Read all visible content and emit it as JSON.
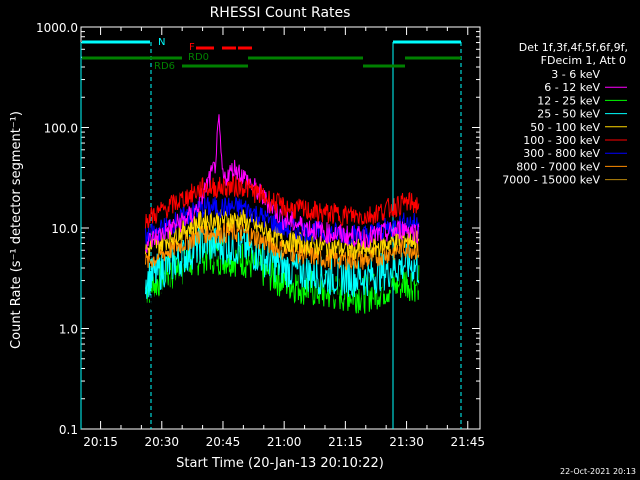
{
  "chart_data": {
    "type": "line",
    "title": "RHESSI Count Rates",
    "xlabel": "Start Time (20-Jan-13 20:10:22)",
    "ylabel": "Count Rate (s⁻¹ detector segment⁻¹)",
    "yscale": "log",
    "ylim": [
      0.1,
      1000
    ],
    "xlim_minutes": [
      20.17,
      21.8
    ],
    "yticks": [
      "0.1",
      "1.0",
      "10.0",
      "100.0",
      "1000.0"
    ],
    "xticks": [
      "20:15",
      "20:30",
      "20:45",
      "21:00",
      "21:15",
      "21:30",
      "21:45"
    ],
    "grid": false,
    "legend_position": "right",
    "legend_header": [
      "Det 1f,3f,4f,5f,6f,9f,",
      "FDecim 1, Att 0"
    ],
    "timestamp": "22-Oct-2021 20:13",
    "flag_labels": {
      "night": "N",
      "flare": "F",
      "rd0": "RD0",
      "rd6": "RD6"
    },
    "series": [
      {
        "name": "3 - 6 keV",
        "color": "#000000",
        "x": [
          "20:26",
          "20:40",
          "20:50",
          "21:00",
          "21:10",
          "21:20",
          "21:30",
          "21:33"
        ],
        "values": [
          1.5,
          6,
          8,
          5,
          3,
          3,
          4,
          3.5
        ]
      },
      {
        "name": "6 - 12 keV",
        "color": "#ff00ff",
        "x": [
          "20:26",
          "20:38",
          "20:43",
          "20:44",
          "20:45",
          "20:48",
          "21:00",
          "21:10",
          "21:20",
          "21:30",
          "21:33"
        ],
        "values": [
          7,
          14,
          40,
          110,
          30,
          40,
          12,
          9,
          8,
          10,
          9
        ]
      },
      {
        "name": "12 - 25 keV",
        "color": "#00ff00",
        "x": [
          "20:26",
          "20:40",
          "20:50",
          "21:00",
          "21:10",
          "21:20",
          "21:30",
          "21:33"
        ],
        "values": [
          2.5,
          5.5,
          5,
          3,
          2.3,
          2.2,
          3,
          2.8
        ]
      },
      {
        "name": "25 - 50 keV",
        "color": "#00ffff",
        "x": [
          "20:26",
          "20:40",
          "20:50",
          "21:00",
          "21:10",
          "21:20",
          "21:30",
          "21:33"
        ],
        "values": [
          3,
          7,
          6.5,
          4,
          3.3,
          3.2,
          4.5,
          4
        ]
      },
      {
        "name": "50 - 100 keV",
        "color": "#ffd700",
        "x": [
          "20:26",
          "20:40",
          "20:50",
          "21:00",
          "21:10",
          "21:20",
          "21:30",
          "21:33"
        ],
        "values": [
          6,
          12,
          12,
          7.5,
          6.5,
          6,
          8,
          7.5
        ]
      },
      {
        "name": "100 - 300 keV",
        "color": "#ff0000",
        "x": [
          "20:26",
          "20:40",
          "20:50",
          "21:00",
          "21:10",
          "21:20",
          "21:30",
          "21:33"
        ],
        "values": [
          12,
          25,
          26,
          16,
          14,
          13,
          18,
          17
        ]
      },
      {
        "name": "300 - 800 keV",
        "color": "#0000ff",
        "x": [
          "20:26",
          "20:40",
          "20:50",
          "21:00",
          "21:10",
          "21:20",
          "21:30",
          "21:33"
        ],
        "values": [
          8,
          16,
          16,
          10,
          9,
          8.5,
          11.5,
          11
        ]
      },
      {
        "name": "800 - 7000 keV",
        "color": "#ff8c00",
        "x": [
          "20:26",
          "20:40",
          "20:50",
          "21:00",
          "21:10",
          "21:20",
          "21:30",
          "21:33"
        ],
        "values": [
          4.5,
          9,
          9,
          6,
          5,
          4.8,
          6.5,
          6
        ]
      },
      {
        "name": "7000 - 15000 keV",
        "color": "#b8860b",
        "x": [],
        "values": []
      }
    ]
  }
}
